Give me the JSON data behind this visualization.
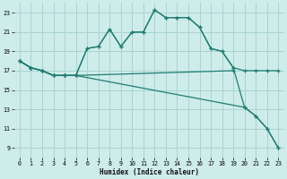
{
  "xlabel": "Humidex (Indice chaleur)",
  "background_color": "#ceecea",
  "grid_color": "#a8d4d0",
  "line_color": "#1e7d72",
  "xlim": [
    -0.5,
    23.5
  ],
  "ylim": [
    8,
    24
  ],
  "yticks": [
    9,
    11,
    13,
    15,
    17,
    19,
    21,
    23
  ],
  "xticks": [
    0,
    1,
    2,
    3,
    4,
    5,
    6,
    7,
    8,
    9,
    10,
    11,
    12,
    13,
    14,
    15,
    16,
    17,
    18,
    19,
    20,
    21,
    22,
    23
  ],
  "line1_x": [
    0,
    1,
    2,
    3,
    4,
    5,
    6,
    7,
    8,
    9,
    10,
    11,
    12,
    13,
    14,
    15,
    16,
    17,
    18,
    19,
    20,
    21,
    22,
    23
  ],
  "line1_y": [
    18.0,
    17.3,
    17.0,
    16.5,
    16.5,
    16.5,
    19.3,
    19.5,
    21.3,
    19.5,
    21.0,
    21.0,
    23.3,
    22.5,
    22.5,
    22.5,
    21.5,
    19.3,
    19.0,
    17.3,
    17.0,
    17.0,
    17.0,
    17.0
  ],
  "line2_x": [
    0,
    1,
    2,
    3,
    4,
    5,
    6,
    7,
    8,
    9,
    10,
    11,
    12,
    13,
    14,
    15,
    16,
    17,
    18,
    19,
    20,
    21,
    22,
    23
  ],
  "line2_y": [
    18.0,
    17.3,
    17.0,
    16.5,
    16.5,
    16.5,
    19.3,
    19.5,
    21.3,
    19.5,
    21.0,
    21.0,
    23.3,
    22.5,
    22.5,
    22.5,
    21.5,
    19.3,
    19.0,
    17.3,
    13.2,
    12.3,
    11.0,
    9.0
  ],
  "line3_x": [
    0,
    1,
    2,
    3,
    4,
    5,
    19
  ],
  "line3_y": [
    18.0,
    17.3,
    17.0,
    16.5,
    16.5,
    16.5,
    17.0
  ],
  "line4_x": [
    0,
    1,
    2,
    3,
    4,
    5,
    20,
    21,
    22,
    23
  ],
  "line4_y": [
    18.0,
    17.3,
    17.0,
    16.5,
    16.5,
    16.5,
    13.2,
    12.3,
    11.0,
    9.0
  ]
}
